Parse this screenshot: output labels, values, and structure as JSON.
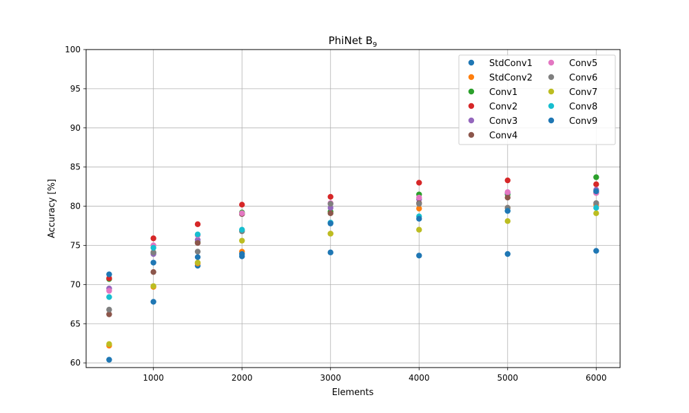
{
  "chart_data": {
    "type": "scatter",
    "title": "PhiNet B",
    "title_subscript": "9",
    "xlabel": "Elements",
    "ylabel": "Accuracy [%]",
    "xlim": [
      240,
      6270
    ],
    "ylim": [
      59.4,
      100
    ],
    "x_ticks": [
      1000,
      2000,
      3000,
      4000,
      5000,
      6000
    ],
    "y_ticks": [
      60,
      65,
      70,
      75,
      80,
      85,
      90,
      95,
      100
    ],
    "grid": true,
    "legend_position": "top-right",
    "legend_columns": 2,
    "x": [
      500,
      1000,
      1500,
      2000,
      3000,
      4000,
      5000,
      6000
    ],
    "series": [
      {
        "name": "StdConv1",
        "color": "#1f77b4",
        "values": [
          60.4,
          67.8,
          72.4,
          73.6,
          74.1,
          73.7,
          73.9,
          74.3
        ]
      },
      {
        "name": "StdConv2",
        "color": "#ff7f0e",
        "values": [
          62.2,
          69.7,
          72.7,
          74.2,
          76.5,
          79.7,
          79.8,
          80.2
        ]
      },
      {
        "name": "Conv1",
        "color": "#2ca02c",
        "values": [
          70.7,
          74.1,
          75.4,
          79.2,
          79.3,
          81.5,
          81.5,
          83.7
        ]
      },
      {
        "name": "Conv2",
        "color": "#d62728",
        "values": [
          70.8,
          75.9,
          77.7,
          80.2,
          81.2,
          83.0,
          83.3,
          82.8
        ]
      },
      {
        "name": "Conv3",
        "color": "#9467bd",
        "values": [
          69.5,
          73.9,
          75.7,
          79.0,
          79.8,
          80.9,
          81.7,
          82.1
        ]
      },
      {
        "name": "Conv4",
        "color": "#8c564b",
        "values": [
          66.2,
          71.6,
          75.3,
          79.0,
          79.1,
          80.4,
          81.1,
          81.7
        ]
      },
      {
        "name": "Conv5",
        "color": "#e377c2",
        "values": [
          69.2,
          75.0,
          76.3,
          79.1,
          80.4,
          81.1,
          81.8,
          81.7
        ]
      },
      {
        "name": "Conv6",
        "color": "#7f7f7f",
        "values": [
          66.8,
          74.1,
          74.2,
          76.8,
          80.3,
          80.3,
          79.8,
          80.4
        ]
      },
      {
        "name": "Conv7",
        "color": "#bcbd22",
        "values": [
          62.4,
          69.8,
          72.8,
          75.6,
          76.5,
          77.0,
          78.1,
          79.1
        ]
      },
      {
        "name": "Conv8",
        "color": "#17becf",
        "values": [
          68.4,
          74.7,
          76.4,
          77.0,
          77.9,
          78.7,
          79.4,
          79.8
        ]
      },
      {
        "name": "Conv9",
        "color": "#1f77b4",
        "values": [
          71.3,
          72.8,
          73.5,
          73.9,
          77.8,
          78.4,
          79.4,
          81.9
        ]
      }
    ]
  }
}
